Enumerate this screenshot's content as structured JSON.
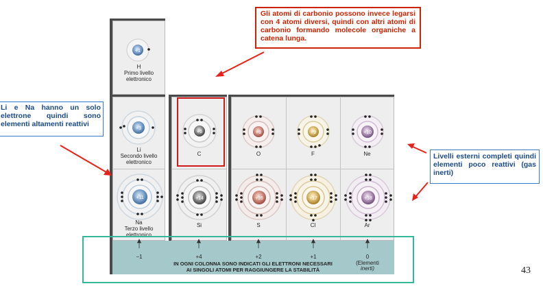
{
  "colors": {
    "callout_red": "#cc2200",
    "callout_blue_text": "#1a4a8a",
    "frame_teal": "#33b89c",
    "arrow_red": "#e8221a",
    "bar_teal": "#a5c9cb"
  },
  "callouts": {
    "top": "Gli atomi di carbonio possono invece legarsi con 4 atomi diversi, quindi con altri atomi di carbonio formando molecole organiche a catena lunga.",
    "left": "Li e Na hanno un solo elettrone quindi sono elementi altamenti reattivi",
    "right": "Livelli esterni completi quindi elementi poco reattivi (gas inerti)"
  },
  "atoms": {
    "H": {
      "nucleus": "+1",
      "symbol": "H",
      "caption1": "Primo livello",
      "caption2": "elettronico"
    },
    "Li": {
      "nucleus": "+3",
      "symbol": "Li",
      "caption1": "Secondo livello",
      "caption2": "elettronico"
    },
    "C": {
      "nucleus": "+6",
      "symbol": "C"
    },
    "O": {
      "nucleus": "+8",
      "symbol": "O"
    },
    "F": {
      "nucleus": "+9",
      "symbol": "F"
    },
    "Ne": {
      "nucleus": "+10",
      "symbol": "Ne"
    },
    "Na": {
      "nucleus": "+11",
      "symbol": "Na",
      "caption1": "Terzo livello",
      "caption2": "elettronico"
    },
    "Si": {
      "nucleus": "+14",
      "symbol": "Si"
    },
    "S": {
      "nucleus": "+16",
      "symbol": "S"
    },
    "Cl": {
      "nucleus": "+17",
      "symbol": "Cl"
    },
    "Ar": {
      "nucleus": "+18",
      "symbol": "Ar"
    }
  },
  "electron_values": [
    "−1",
    "+4",
    "+2",
    "+1",
    "0"
  ],
  "noble_note1": "(Elementi",
  "noble_note2": "inerti)",
  "bar_caption1": "IN OGNI COLONNA SONO INDICATI GLI ELETTRONI NECESSARI",
  "bar_caption2": "AI SINGOLI ATOMI PER RAGGIUNGERE LA STABILITÀ",
  "page_number": "43"
}
